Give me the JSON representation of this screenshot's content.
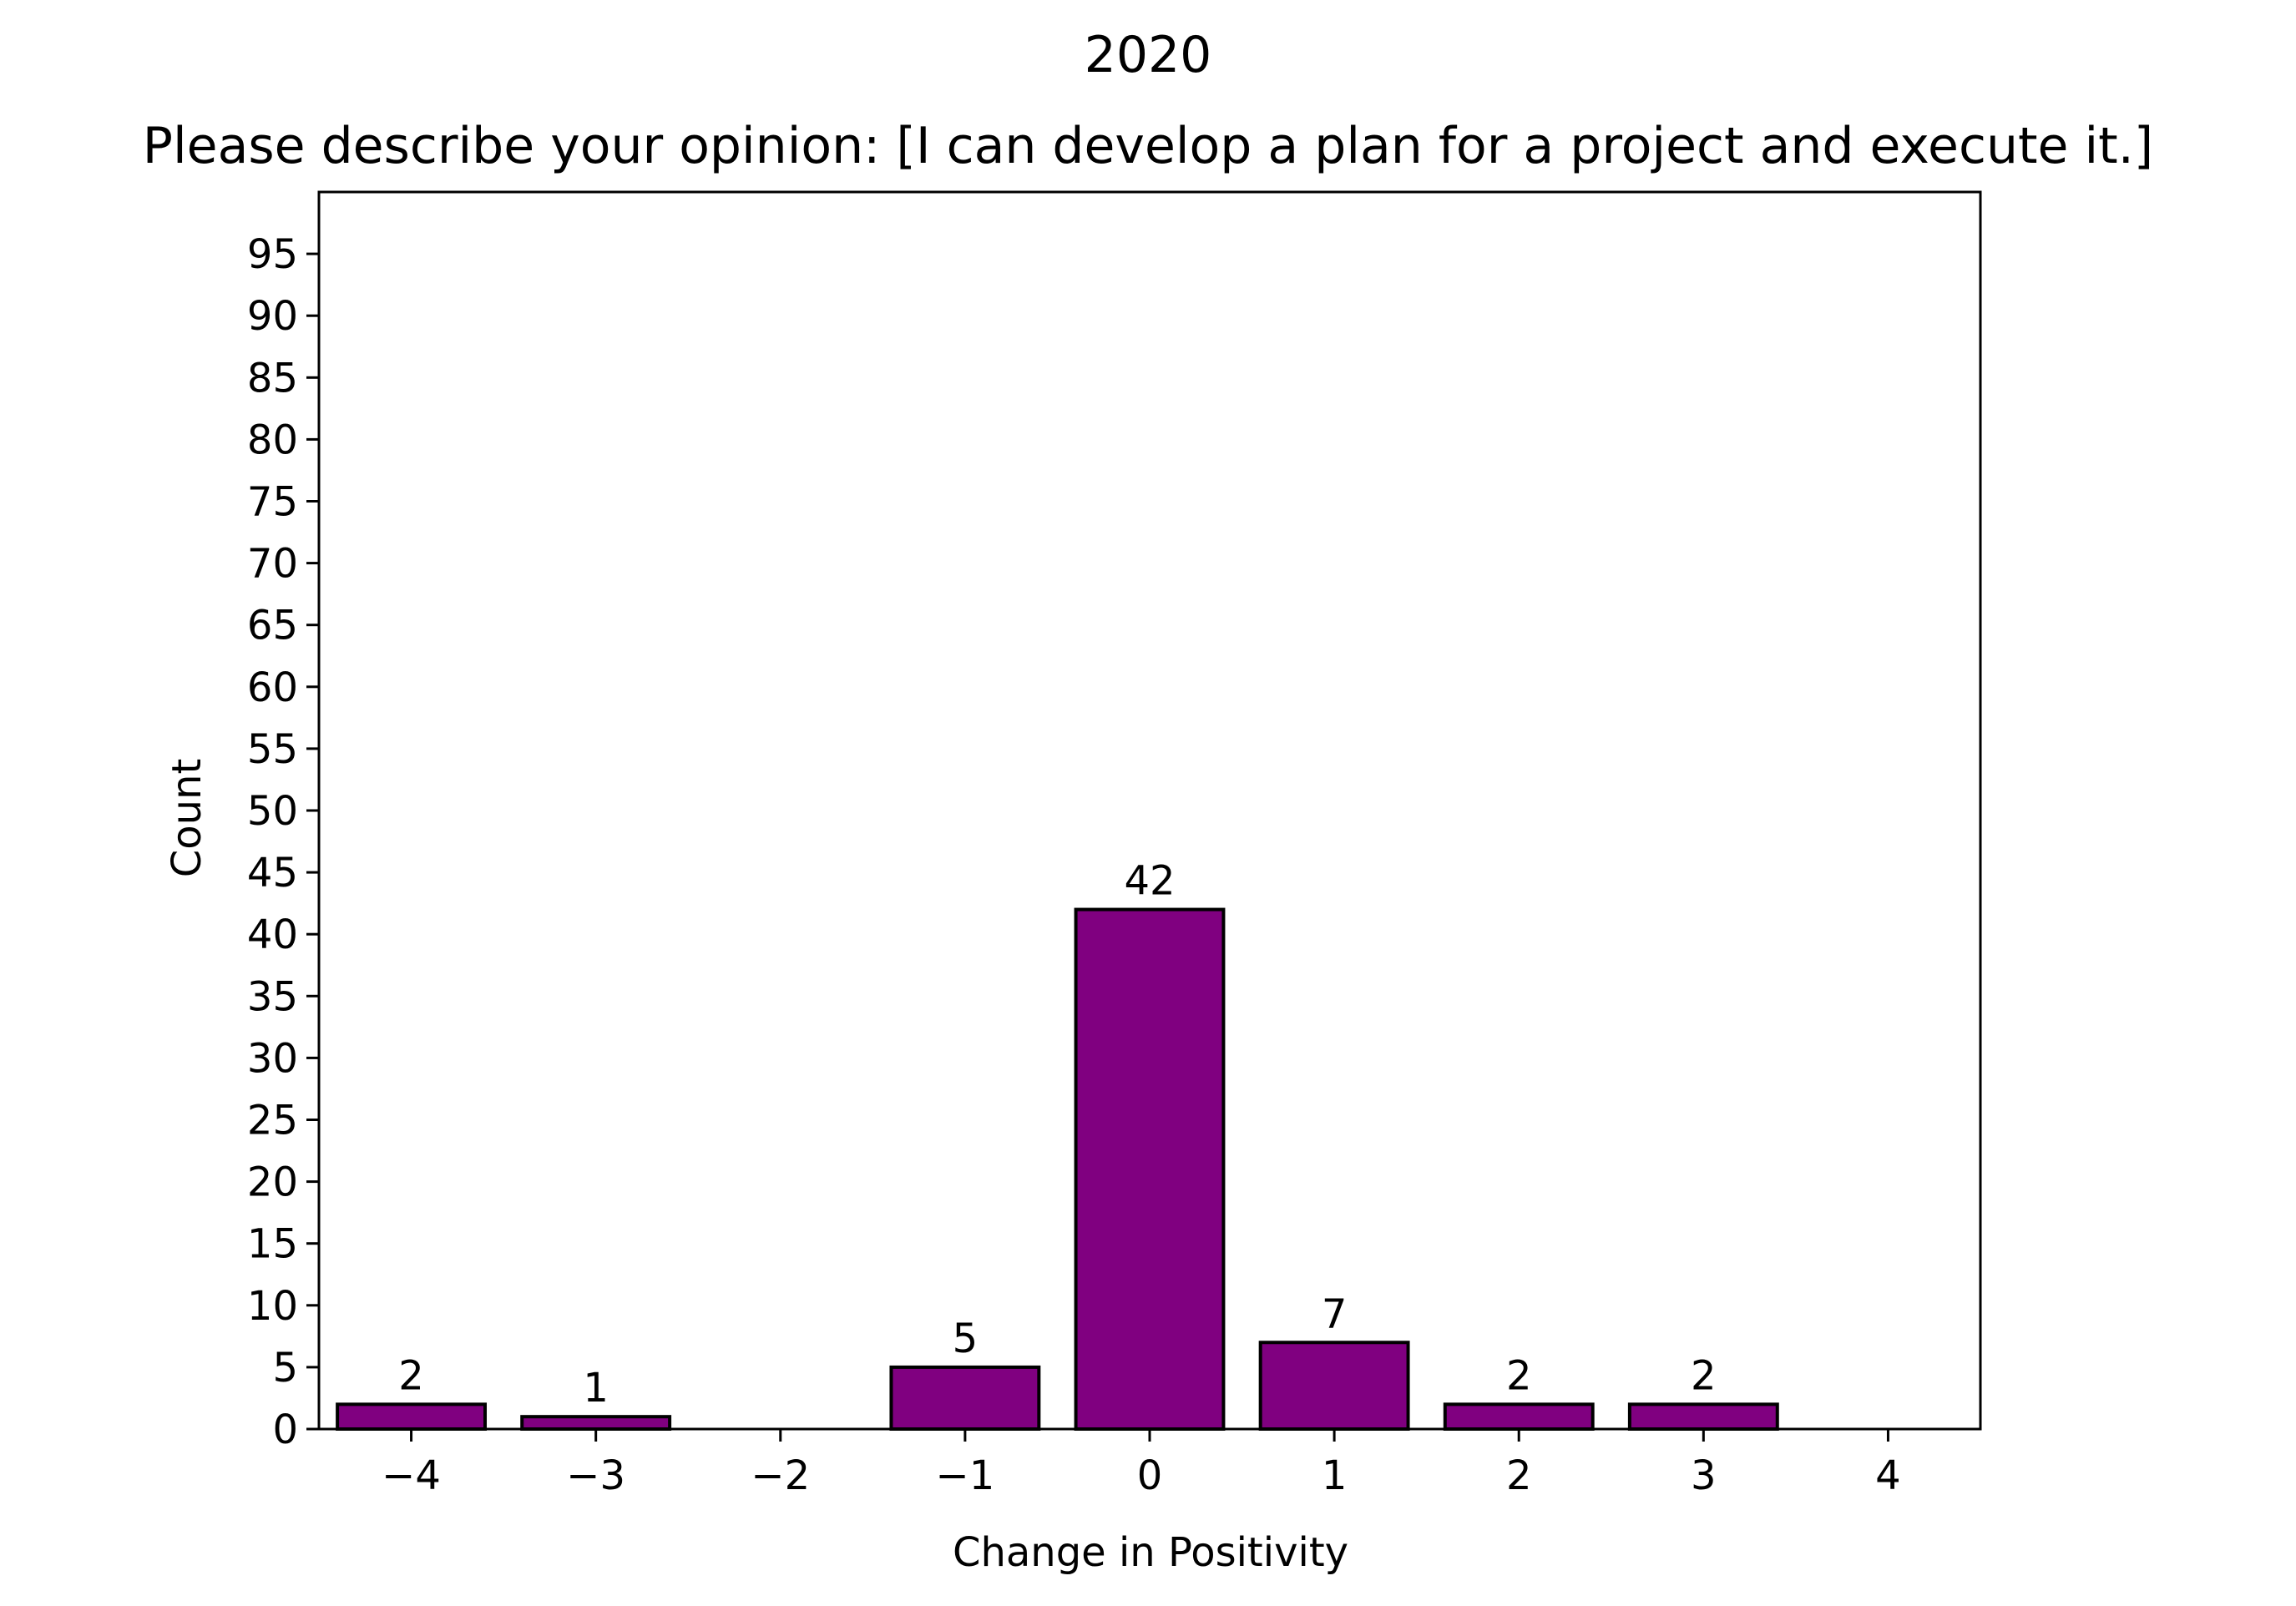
{
  "chart_data": {
    "type": "bar",
    "suptitle": "2020",
    "title": "Please describe your opinion: [I can develop a plan for a project and execute it.]",
    "xlabel": "Change in Positivity",
    "ylabel": "Count",
    "categories": [
      -4,
      -3,
      -2,
      -1,
      0,
      1,
      2,
      3,
      4
    ],
    "x_tick_labels": [
      "−4",
      "−3",
      "−2",
      "−1",
      "0",
      "1",
      "2",
      "3",
      "4"
    ],
    "values": [
      2,
      1,
      0,
      5,
      42,
      7,
      2,
      2,
      0
    ],
    "data_labels": [
      "2",
      "1",
      "",
      "5",
      "42",
      "7",
      "2",
      "2",
      ""
    ],
    "xlim": [
      -4.5,
      4.5
    ],
    "ylim": [
      0,
      100
    ],
    "y_ticks": [
      0,
      5,
      10,
      15,
      20,
      25,
      30,
      35,
      40,
      45,
      50,
      55,
      60,
      65,
      70,
      75,
      80,
      85,
      90,
      95
    ],
    "bar_color": "#800080",
    "edge_color": "#000000",
    "grid": false,
    "legend": "none"
  }
}
